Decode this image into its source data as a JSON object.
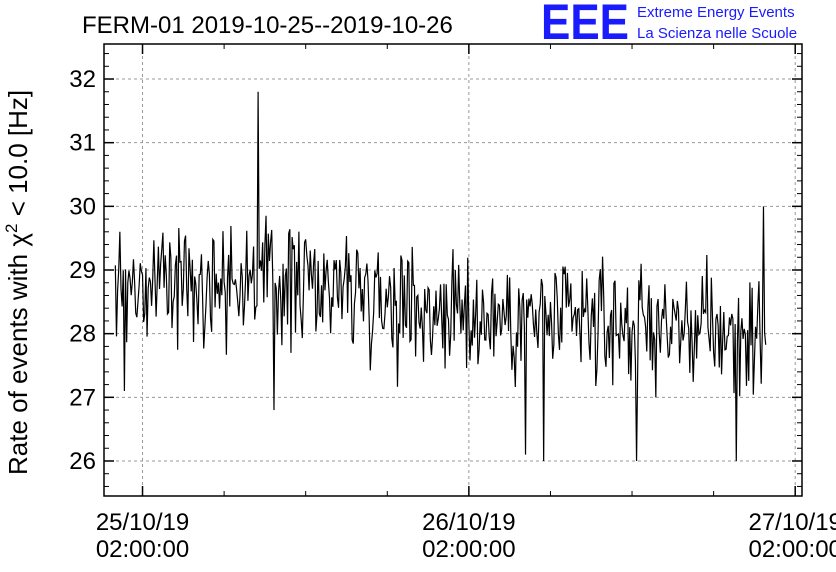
{
  "title": "FERM-01 2019-10-25--2019-10-26",
  "logo": {
    "mark": "EEE",
    "line1": "Extreme Energy Events",
    "line2": "La Scienza nelle Scuole",
    "color": "#1a1aff"
  },
  "chart_data": {
    "type": "line",
    "title": "FERM-01 2019-10-25--2019-10-26",
    "ylabel_main": "Rate of events with χ",
    "ylabel_sup": "2",
    "ylabel_tail": " < 10.0 [Hz]",
    "xlabel": "",
    "ylim": [
      25.45,
      32.55
    ],
    "xlim": [
      "2019-10-24 23:10:00",
      "2019-10-27 02:30:00"
    ],
    "grid": true,
    "line_color": "#000000",
    "x_ticks": [
      {
        "date": "25/10/19",
        "time": "02:00:00",
        "at": "2019-10-25 02:00:00"
      },
      {
        "date": "26/10/19",
        "time": "02:00:00",
        "at": "2019-10-26 02:00:00"
      },
      {
        "date": "27/10/19",
        "time": "02:00:00",
        "at": "2019-10-27 02:00:00"
      }
    ],
    "y_ticks": [
      "26",
      "27",
      "28",
      "29",
      "30",
      "31",
      "32"
    ],
    "series": [
      {
        "x_range": [
          "2019-10-25 00:00:00",
          "2019-10-26 23:50:00"
        ],
        "sample_interval_min": 5,
        "trend": [
          {
            "x": "2019-10-25 00:00",
            "y": 28.7
          },
          {
            "x": "2019-10-25 06:00",
            "y": 28.9
          },
          {
            "x": "2019-10-25 12:00",
            "y": 28.85
          },
          {
            "x": "2019-10-25 18:00",
            "y": 28.75
          },
          {
            "x": "2019-10-25 23:00",
            "y": 28.4
          },
          {
            "x": "2019-10-26 06:00",
            "y": 28.2
          },
          {
            "x": "2019-10-26 12:00",
            "y": 28.15
          },
          {
            "x": "2019-10-26 18:00",
            "y": 28.1
          },
          {
            "x": "2019-10-26 23:50",
            "y": 27.95
          }
        ],
        "noise_sd": 0.45,
        "spikes": [
          {
            "x": "2019-10-25 00:20",
            "y": 29.6
          },
          {
            "x": "2019-10-25 00:40",
            "y": 27.1
          },
          {
            "x": "2019-10-25 10:30",
            "y": 31.8
          },
          {
            "x": "2019-10-25 11:40",
            "y": 26.8
          },
          {
            "x": "2019-10-26 06:10",
            "y": 26.1
          },
          {
            "x": "2019-10-26 07:30",
            "y": 26.0
          },
          {
            "x": "2019-10-26 14:20",
            "y": 26.0
          },
          {
            "x": "2019-10-26 21:40",
            "y": 26.0
          },
          {
            "x": "2019-10-26 23:40",
            "y": 30.0
          }
        ]
      }
    ]
  }
}
